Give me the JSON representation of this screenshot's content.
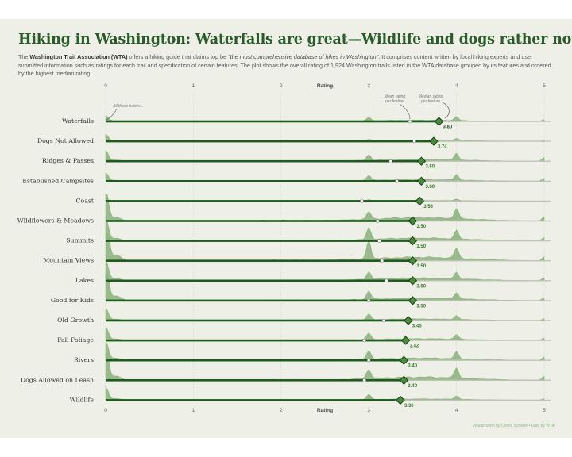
{
  "title": "Hiking in Washington: Waterfalls are great—Wildlife and dogs rather not",
  "subtitle": {
    "part1": "The ",
    "org": "Washington Trait Association (WTA)",
    "part2": " offers a hiking guide that claims top be ",
    "quote": "\"the most comprehensive database of hikes in Washington\"",
    "part3": ". It comprises content written by local hiking experts and user submitted information such as ratings for each trail and specification of certain features. The plot shows the overall rating of 1,924 Washington trails listed in the WTA database grouped by its features and ordered by the highest median rating."
  },
  "caption": "Visualization by Cédric Scherer  •  Data by WTA",
  "annotations": {
    "all_haters": "All these haters...",
    "mean_line1": "Mean rating",
    "mean_line2": "per feature",
    "median_line1": "Median rating",
    "median_line2": "per feature"
  },
  "colors": {
    "dark_green": "#1f5a1f",
    "ridge_fill": "#8fb482",
    "median_fill": "#4e8a3e",
    "label_green": "#3a7a2e",
    "axis_text": "#666666"
  },
  "chart_data": {
    "type": "ridgeline",
    "xlabel": "Rating",
    "xlim": [
      0,
      5
    ],
    "x_ticks": [
      "0",
      "1",
      "2",
      "3",
      "4",
      "5"
    ],
    "features": [
      "Waterfalls",
      "Dogs Not Allowed",
      "Ridges & Passes",
      "Established Campsites",
      "Coast",
      "Wildflowers & Meadows",
      "Summits",
      "Mountain Views",
      "Lakes",
      "Good for Kids",
      "Old Growth",
      "Fall Foliage",
      "Rivers",
      "Dogs Allowed on Leash",
      "Wildlife"
    ],
    "medians": [
      3.8,
      3.74,
      3.6,
      3.6,
      3.58,
      3.5,
      3.5,
      3.5,
      3.5,
      3.5,
      3.45,
      3.42,
      3.4,
      3.4,
      3.36
    ],
    "median_labels": [
      "3.80",
      "3.74",
      "3.60",
      "3.60",
      "3.58",
      "3.50",
      "3.50",
      "3.50",
      "3.50",
      "3.50",
      "3.45",
      "3.42",
      "3.40",
      "3.40",
      "3.36"
    ],
    "means": [
      3.47,
      3.52,
      3.25,
      3.32,
      2.92,
      3.1,
      3.12,
      3.15,
      3.2,
      3.0,
      3.17,
      2.95,
      3.0,
      2.95,
      3.32
    ],
    "zero_peak": [
      0.25,
      0.3,
      0.45,
      0.35,
      0.1,
      1.3,
      0.95,
      2.1,
      0.85,
      1.65,
      0.5,
      0.55,
      0.8,
      1.5,
      0.55
    ],
    "density_scale": [
      0.35,
      0.35,
      0.5,
      0.45,
      0.2,
      0.95,
      0.8,
      1.0,
      0.75,
      0.7,
      0.45,
      0.5,
      0.65,
      0.9,
      0.35
    ],
    "spikes": [
      [
        [
          3.0,
          0.35
        ],
        [
          4.0,
          0.4
        ],
        [
          5.0,
          0.2
        ]
      ],
      [
        [
          3.0,
          0.15
        ],
        [
          4.0,
          0.2
        ],
        [
          5.0,
          0.1
        ]
      ],
      [
        [
          3.0,
          0.6
        ],
        [
          4.0,
          0.7
        ],
        [
          5.0,
          0.4
        ]
      ],
      [
        [
          3.0,
          0.55
        ],
        [
          4.0,
          0.6
        ],
        [
          5.0,
          0.3
        ]
      ],
      [
        [
          3.0,
          0.1
        ],
        [
          4.0,
          0.15
        ],
        [
          5.0,
          0.05
        ]
      ],
      [
        [
          3.0,
          0.8
        ],
        [
          4.0,
          1.1
        ],
        [
          5.0,
          0.45
        ]
      ],
      [
        [
          3.0,
          1.2
        ],
        [
          4.0,
          0.9
        ],
        [
          5.0,
          0.35
        ]
      ],
      [
        [
          3.0,
          2.0
        ],
        [
          4.0,
          1.1
        ],
        [
          5.0,
          0.4
        ]
      ],
      [
        [
          3.0,
          0.8
        ],
        [
          4.0,
          0.7
        ],
        [
          5.0,
          0.3
        ]
      ],
      [
        [
          3.0,
          0.9
        ],
        [
          4.0,
          0.7
        ],
        [
          5.0,
          0.3
        ]
      ],
      [
        [
          3.0,
          0.6
        ],
        [
          4.0,
          0.4
        ],
        [
          5.0,
          0.2
        ]
      ],
      [
        [
          3.0,
          0.7
        ],
        [
          4.0,
          0.5
        ],
        [
          5.0,
          0.25
        ]
      ],
      [
        [
          3.0,
          0.9
        ],
        [
          4.0,
          0.75
        ],
        [
          5.0,
          0.35
        ]
      ],
      [
        [
          3.0,
          1.0
        ],
        [
          4.0,
          1.1
        ],
        [
          5.0,
          0.4
        ]
      ],
      [
        [
          3.0,
          0.55
        ],
        [
          4.0,
          0.35
        ],
        [
          5.0,
          0.15
        ]
      ]
    ]
  }
}
